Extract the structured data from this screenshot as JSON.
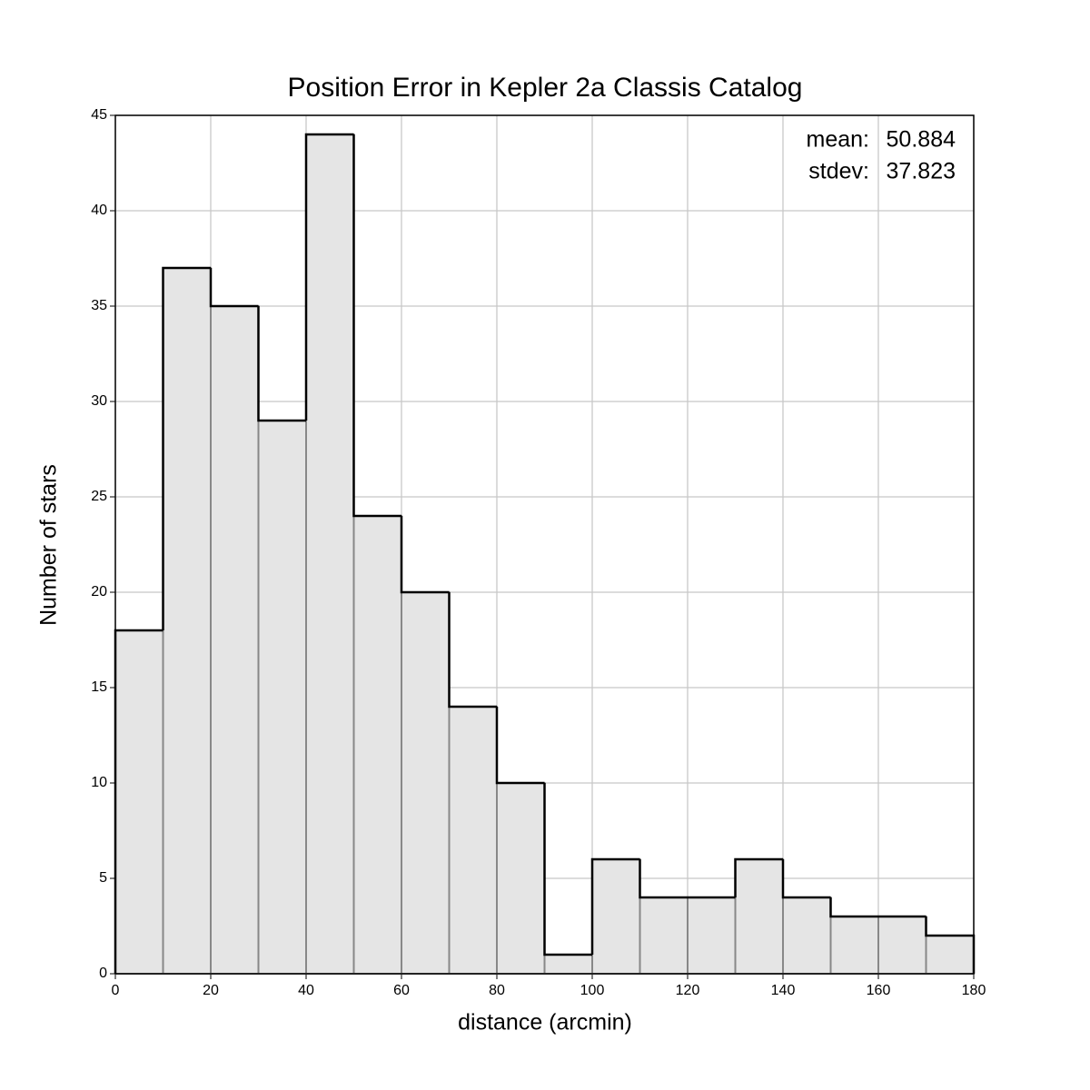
{
  "chart_data": {
    "type": "histogram",
    "title": "Position Error in Kepler 2a Classis Catalog",
    "xlabel": "distance (arcmin)",
    "ylabel": "Number of stars",
    "bins": [
      0,
      10,
      20,
      30,
      40,
      50,
      60,
      70,
      80,
      90,
      100,
      110,
      120,
      130,
      140,
      150,
      160,
      170,
      180
    ],
    "values": [
      18,
      37,
      35,
      29,
      44,
      24,
      20,
      14,
      10,
      1,
      6,
      4,
      4,
      6,
      4,
      3,
      3,
      2
    ],
    "color": "#e5e5e5",
    "xlim": [
      0,
      180
    ],
    "xticks": [
      0,
      20,
      40,
      60,
      80,
      100,
      120,
      140,
      160,
      180
    ],
    "ylim": [
      0,
      45
    ],
    "yticks": [
      0,
      5,
      10,
      15,
      20,
      25,
      30,
      35,
      40,
      45
    ],
    "grid": true,
    "annotations": [
      {
        "label": "mean:",
        "value": 50.884
      },
      {
        "label": "stdev:",
        "value": 37.823
      }
    ]
  }
}
